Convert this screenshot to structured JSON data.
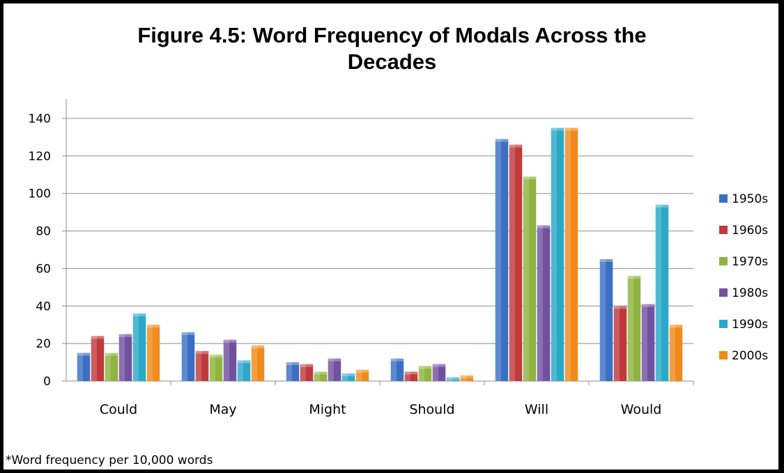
{
  "chart_data": {
    "type": "bar",
    "title": "Figure 4.5: Word Frequency of Modals Across the\nDecades",
    "xlabel": "",
    "ylabel": "",
    "ylim": [
      0,
      140
    ],
    "yticks": [
      0,
      20,
      40,
      60,
      80,
      100,
      120,
      140
    ],
    "grid": true,
    "legend_position": "right",
    "categories": [
      "Could",
      "May",
      "Might",
      "Should",
      "Will",
      "Would"
    ],
    "series": [
      {
        "name": "1950s",
        "color": "#3a6fc4",
        "values": [
          15,
          26,
          10,
          12,
          129,
          65
        ]
      },
      {
        "name": "1960s",
        "color": "#c0393b",
        "values": [
          24,
          16,
          9,
          5,
          126,
          40
        ]
      },
      {
        "name": "1970s",
        "color": "#8fb43f",
        "values": [
          15,
          14,
          5,
          8,
          109,
          56
        ]
      },
      {
        "name": "1980s",
        "color": "#7150a0",
        "values": [
          25,
          22,
          12,
          9,
          83,
          41
        ]
      },
      {
        "name": "1990s",
        "color": "#2ba8c8",
        "values": [
          36,
          11,
          4,
          2,
          135,
          94
        ]
      },
      {
        "name": "2000s",
        "color": "#f08a1c",
        "values": [
          30,
          19,
          6,
          3,
          135,
          30
        ]
      }
    ],
    "footnote": "*Word frequency per 10,000 words"
  }
}
